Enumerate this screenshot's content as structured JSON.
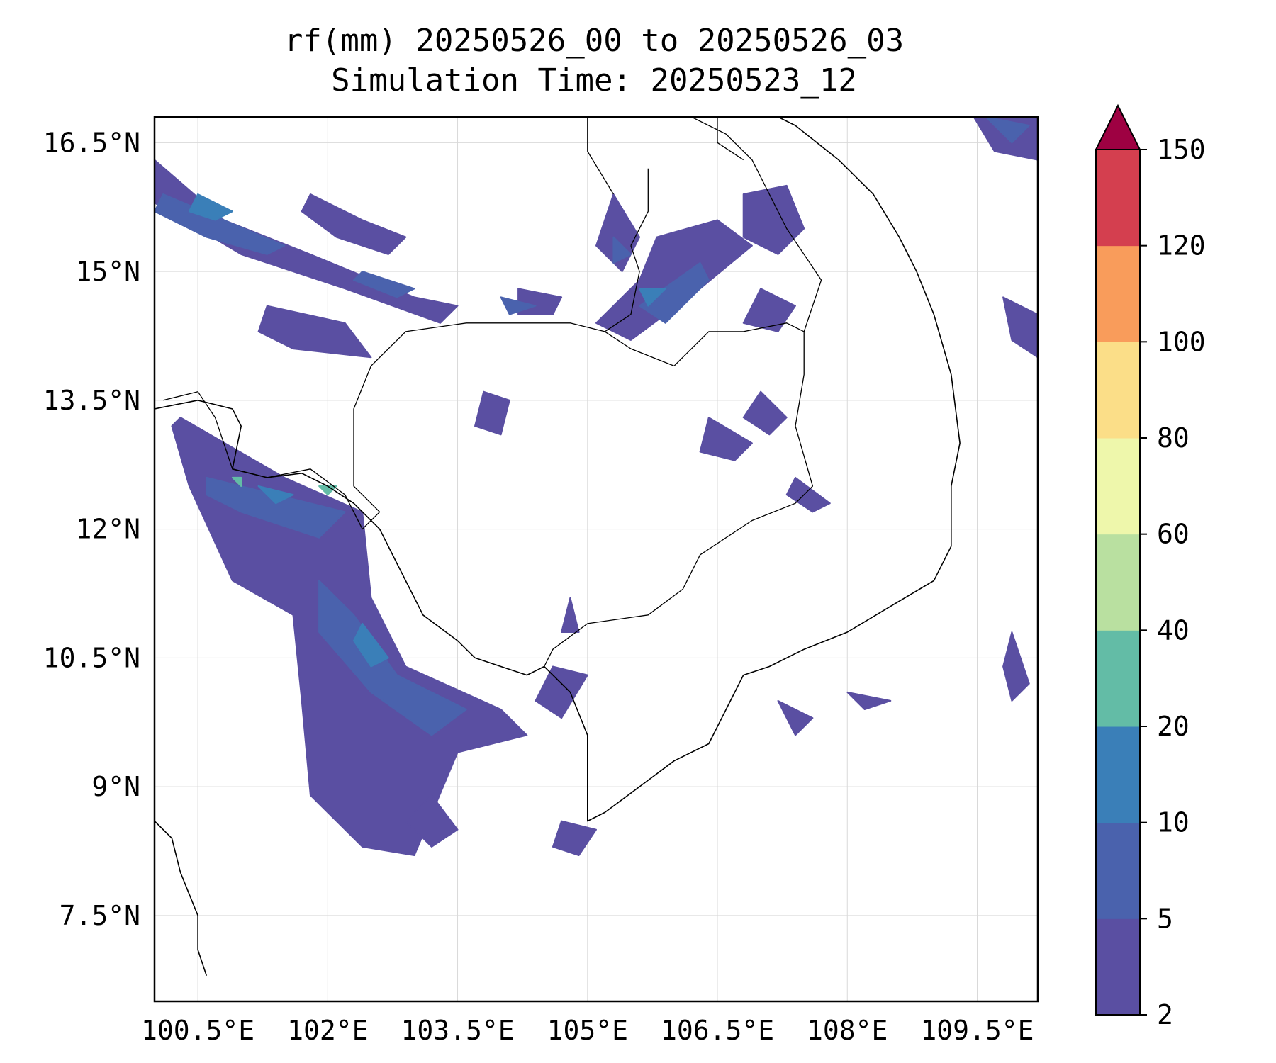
{
  "figure": {
    "title_line1": "rf(mm) 20250526_00 to 20250526_03",
    "title_line2": "Simulation Time: 20250523_12"
  },
  "map": {
    "lon_range": [
      100.0,
      110.2
    ],
    "lat_range": [
      6.5,
      16.8
    ],
    "lon_ticks": [
      {
        "value": 100.5,
        "label": "100.5°E"
      },
      {
        "value": 102.0,
        "label": "102°E"
      },
      {
        "value": 103.5,
        "label": "103.5°E"
      },
      {
        "value": 105.0,
        "label": "105°E"
      },
      {
        "value": 106.5,
        "label": "106.5°E"
      },
      {
        "value": 108.0,
        "label": "108°E"
      },
      {
        "value": 109.5,
        "label": "109.5°E"
      }
    ],
    "lat_ticks": [
      {
        "value": 16.5,
        "label": "16.5°N"
      },
      {
        "value": 15.0,
        "label": "15°N"
      },
      {
        "value": 13.5,
        "label": "13.5°N"
      },
      {
        "value": 12.0,
        "label": "12°N"
      },
      {
        "value": 10.5,
        "label": "10.5°N"
      },
      {
        "value": 9.0,
        "label": "9°N"
      },
      {
        "value": 7.5,
        "label": "7.5°N"
      }
    ],
    "gridlines": true
  },
  "colorbar": {
    "levels": [
      2,
      5,
      10,
      20,
      40,
      60,
      80,
      100,
      120,
      150
    ],
    "labels": [
      "2",
      "5",
      "10",
      "20",
      "40",
      "60",
      "80",
      "100",
      "120",
      "150"
    ],
    "colors": [
      "#5a4fa2",
      "#4a62ad",
      "#3a7fb8",
      "#63bca6",
      "#b9e0a0",
      "#eef7ab",
      "#fbde88",
      "#f99c5b",
      "#d43f4f"
    ],
    "extend_color": "#9e0142",
    "extend": "max"
  },
  "rain_areas": [
    {
      "level": "2-5",
      "pts": [
        [
          100.0,
          16.3
        ],
        [
          100.8,
          15.6
        ],
        [
          101.8,
          15.2
        ],
        [
          103.0,
          14.7
        ],
        [
          103.5,
          14.6
        ],
        [
          103.3,
          14.4
        ],
        [
          102.2,
          14.8
        ],
        [
          101.0,
          15.2
        ],
        [
          100.0,
          15.8
        ]
      ]
    },
    {
      "level": "2-5",
      "pts": [
        [
          100.3,
          13.3
        ],
        [
          101.5,
          12.6
        ],
        [
          102.4,
          12.2
        ],
        [
          102.5,
          11.2
        ],
        [
          102.9,
          10.4
        ],
        [
          104.0,
          9.9
        ],
        [
          104.3,
          9.6
        ],
        [
          103.5,
          9.4
        ],
        [
          103.0,
          8.2
        ],
        [
          102.4,
          8.3
        ],
        [
          101.8,
          8.9
        ],
        [
          101.7,
          10.0
        ],
        [
          101.6,
          11.0
        ],
        [
          100.9,
          11.4
        ],
        [
          100.4,
          12.5
        ],
        [
          100.2,
          13.2
        ]
      ]
    },
    {
      "level": "2-5",
      "pts": [
        [
          101.3,
          14.6
        ],
        [
          102.2,
          14.4
        ],
        [
          102.5,
          14.0
        ],
        [
          101.6,
          14.1
        ],
        [
          101.2,
          14.3
        ]
      ]
    },
    {
      "level": "2-5",
      "pts": [
        [
          101.8,
          15.9
        ],
        [
          102.4,
          15.6
        ],
        [
          102.9,
          15.4
        ],
        [
          102.7,
          15.2
        ],
        [
          102.1,
          15.4
        ],
        [
          101.7,
          15.7
        ]
      ]
    },
    {
      "level": "2-5",
      "pts": [
        [
          105.3,
          15.9
        ],
        [
          105.6,
          15.4
        ],
        [
          105.4,
          15.0
        ],
        [
          105.1,
          15.3
        ]
      ]
    },
    {
      "level": "2-5",
      "pts": [
        [
          105.8,
          15.4
        ],
        [
          106.5,
          15.6
        ],
        [
          106.9,
          15.3
        ],
        [
          106.3,
          14.8
        ],
        [
          105.5,
          14.2
        ],
        [
          105.1,
          14.4
        ],
        [
          105.6,
          14.9
        ]
      ]
    },
    {
      "level": "2-5",
      "pts": [
        [
          107.0,
          14.8
        ],
        [
          107.4,
          14.6
        ],
        [
          107.2,
          14.3
        ],
        [
          106.8,
          14.4
        ]
      ]
    },
    {
      "level": "2-5",
      "pts": [
        [
          106.8,
          15.9
        ],
        [
          107.3,
          16.0
        ],
        [
          107.5,
          15.5
        ],
        [
          107.2,
          15.2
        ],
        [
          106.8,
          15.4
        ]
      ]
    },
    {
      "level": "2-5",
      "pts": [
        [
          109.4,
          16.9
        ],
        [
          110.2,
          16.9
        ],
        [
          110.2,
          16.3
        ],
        [
          109.7,
          16.4
        ]
      ]
    },
    {
      "level": "2-5",
      "pts": [
        [
          104.2,
          14.8
        ],
        [
          104.7,
          14.7
        ],
        [
          104.6,
          14.5
        ],
        [
          104.2,
          14.5
        ]
      ]
    },
    {
      "level": "2-5",
      "pts": [
        [
          103.8,
          13.6
        ],
        [
          104.1,
          13.5
        ],
        [
          104.0,
          13.1
        ],
        [
          103.7,
          13.2
        ]
      ]
    },
    {
      "level": "2-5",
      "pts": [
        [
          107.0,
          13.6
        ],
        [
          107.3,
          13.3
        ],
        [
          107.1,
          13.1
        ],
        [
          106.8,
          13.3
        ]
      ]
    },
    {
      "level": "2-5",
      "pts": [
        [
          106.4,
          13.3
        ],
        [
          106.9,
          13.0
        ],
        [
          106.7,
          12.8
        ],
        [
          106.3,
          12.9
        ]
      ]
    },
    {
      "level": "2-5",
      "pts": [
        [
          107.4,
          12.6
        ],
        [
          107.8,
          12.3
        ],
        [
          107.6,
          12.2
        ],
        [
          107.3,
          12.4
        ]
      ]
    },
    {
      "level": "2-5",
      "pts": [
        [
          104.8,
          11.2
        ],
        [
          104.9,
          10.8
        ],
        [
          104.7,
          10.8
        ]
      ]
    },
    {
      "level": "2-5",
      "pts": [
        [
          104.6,
          10.4
        ],
        [
          105.0,
          10.3
        ],
        [
          104.7,
          9.8
        ],
        [
          104.4,
          10.0
        ]
      ]
    },
    {
      "level": "2-5",
      "pts": [
        [
          107.2,
          10.0
        ],
        [
          107.6,
          9.8
        ],
        [
          107.4,
          9.6
        ]
      ]
    },
    {
      "level": "2-5",
      "pts": [
        [
          108.0,
          10.1
        ],
        [
          108.5,
          10.0
        ],
        [
          108.2,
          9.9
        ]
      ]
    },
    {
      "level": "2-5",
      "pts": [
        [
          104.7,
          8.6
        ],
        [
          105.1,
          8.5
        ],
        [
          104.9,
          8.2
        ],
        [
          104.6,
          8.3
        ]
      ]
    },
    {
      "level": "2-5",
      "pts": [
        [
          103.2,
          8.9
        ],
        [
          103.5,
          8.5
        ],
        [
          103.2,
          8.3
        ],
        [
          102.9,
          8.6
        ]
      ]
    },
    {
      "level": "2-5",
      "pts": [
        [
          109.8,
          14.7
        ],
        [
          110.2,
          14.5
        ],
        [
          110.2,
          14.0
        ],
        [
          109.9,
          14.2
        ]
      ]
    },
    {
      "level": "2-5",
      "pts": [
        [
          109.9,
          10.8
        ],
        [
          110.1,
          10.2
        ],
        [
          109.9,
          10.0
        ],
        [
          109.8,
          10.4
        ]
      ]
    },
    {
      "level": "5-10",
      "pts": [
        [
          100.1,
          15.9
        ],
        [
          100.8,
          15.6
        ],
        [
          101.5,
          15.3
        ],
        [
          101.3,
          15.2
        ],
        [
          100.6,
          15.4
        ],
        [
          100.0,
          15.7
        ]
      ]
    },
    {
      "level": "5-10",
      "pts": [
        [
          102.4,
          15.0
        ],
        [
          103.0,
          14.8
        ],
        [
          102.8,
          14.7
        ],
        [
          102.3,
          14.9
        ]
      ]
    },
    {
      "level": "5-10",
      "pts": [
        [
          100.6,
          12.6
        ],
        [
          101.8,
          12.3
        ],
        [
          102.2,
          12.2
        ],
        [
          101.9,
          11.9
        ],
        [
          101.0,
          12.2
        ],
        [
          100.6,
          12.4
        ]
      ]
    },
    {
      "level": "5-10",
      "pts": [
        [
          101.9,
          11.4
        ],
        [
          102.3,
          11.0
        ],
        [
          102.8,
          10.3
        ],
        [
          103.6,
          9.9
        ],
        [
          103.2,
          9.6
        ],
        [
          102.5,
          10.1
        ],
        [
          101.9,
          10.8
        ]
      ]
    },
    {
      "level": "5-10",
      "pts": [
        [
          105.6,
          14.6
        ],
        [
          106.3,
          15.1
        ],
        [
          106.4,
          14.9
        ],
        [
          105.9,
          14.4
        ]
      ]
    },
    {
      "level": "5-10",
      "pts": [
        [
          105.3,
          15.4
        ],
        [
          105.5,
          15.2
        ],
        [
          105.3,
          15.1
        ]
      ]
    },
    {
      "level": "5-10",
      "pts": [
        [
          104.0,
          14.7
        ],
        [
          104.4,
          14.6
        ],
        [
          104.1,
          14.5
        ]
      ]
    },
    {
      "level": "5-10",
      "pts": [
        [
          109.6,
          16.8
        ],
        [
          110.1,
          16.7
        ],
        [
          109.9,
          16.5
        ]
      ]
    },
    {
      "level": "10-20",
      "pts": [
        [
          100.5,
          15.9
        ],
        [
          100.9,
          15.7
        ],
        [
          100.7,
          15.6
        ],
        [
          100.4,
          15.7
        ]
      ]
    },
    {
      "level": "10-20",
      "pts": [
        [
          101.2,
          12.5
        ],
        [
          101.6,
          12.4
        ],
        [
          101.4,
          12.3
        ]
      ]
    },
    {
      "level": "10-20",
      "pts": [
        [
          102.4,
          10.9
        ],
        [
          102.7,
          10.5
        ],
        [
          102.5,
          10.4
        ],
        [
          102.3,
          10.7
        ]
      ]
    },
    {
      "level": "10-20",
      "pts": [
        [
          105.6,
          14.8
        ],
        [
          105.9,
          14.8
        ],
        [
          105.7,
          14.6
        ]
      ]
    },
    {
      "level": "20-40",
      "pts": [
        [
          101.9,
          12.5
        ],
        [
          102.1,
          12.5
        ],
        [
          102.0,
          12.4
        ]
      ]
    },
    {
      "level": "20-40",
      "pts": [
        [
          100.9,
          12.6
        ],
        [
          101.0,
          12.6
        ],
        [
          101.0,
          12.5
        ]
      ]
    }
  ],
  "coastlines": [
    [
      [
        100.0,
        13.4
      ],
      [
        100.5,
        13.5
      ],
      [
        100.9,
        13.4
      ],
      [
        101.0,
        13.2
      ],
      [
        100.9,
        12.7
      ],
      [
        101.3,
        12.6
      ],
      [
        101.7,
        12.65
      ],
      [
        102.0,
        12.5
      ],
      [
        102.3,
        12.3
      ],
      [
        102.6,
        12.0
      ],
      [
        102.8,
        11.6
      ],
      [
        103.0,
        11.2
      ],
      [
        103.1,
        11.0
      ],
      [
        103.5,
        10.7
      ],
      [
        103.7,
        10.5
      ],
      [
        104.0,
        10.4
      ],
      [
        104.3,
        10.3
      ],
      [
        104.5,
        10.4
      ],
      [
        104.8,
        10.1
      ],
      [
        105.0,
        9.6
      ],
      [
        105.0,
        8.6
      ],
      [
        105.2,
        8.7
      ],
      [
        105.6,
        9.0
      ],
      [
        106.0,
        9.3
      ],
      [
        106.4,
        9.5
      ],
      [
        106.8,
        10.3
      ],
      [
        107.1,
        10.4
      ],
      [
        107.5,
        10.6
      ],
      [
        108.0,
        10.8
      ],
      [
        108.5,
        11.1
      ],
      [
        109.0,
        11.4
      ],
      [
        109.2,
        11.8
      ],
      [
        109.2,
        12.5
      ],
      [
        109.3,
        13.0
      ],
      [
        109.2,
        13.8
      ],
      [
        109.0,
        14.5
      ],
      [
        108.8,
        15.0
      ],
      [
        108.6,
        15.4
      ],
      [
        108.3,
        15.9
      ],
      [
        107.9,
        16.3
      ],
      [
        107.4,
        16.7
      ],
      [
        107.0,
        16.9
      ]
    ],
    [
      [
        100.0,
        8.6
      ],
      [
        100.2,
        8.4
      ],
      [
        100.3,
        8.0
      ],
      [
        100.5,
        7.5
      ],
      [
        100.5,
        7.1
      ],
      [
        100.6,
        6.8
      ]
    ]
  ],
  "borders": [
    [
      [
        100.1,
        13.5
      ],
      [
        100.5,
        13.6
      ],
      [
        100.7,
        13.3
      ],
      [
        100.9,
        12.7
      ],
      [
        101.3,
        12.6
      ],
      [
        101.8,
        12.7
      ],
      [
        102.2,
        12.4
      ],
      [
        102.4,
        12.0
      ],
      [
        102.6,
        12.2
      ],
      [
        102.3,
        12.5
      ],
      [
        102.3,
        12.8
      ],
      [
        102.3,
        13.4
      ],
      [
        102.5,
        13.9
      ],
      [
        102.9,
        14.3
      ],
      [
        103.6,
        14.4
      ],
      [
        104.3,
        14.4
      ],
      [
        104.8,
        14.4
      ],
      [
        105.2,
        14.3
      ],
      [
        105.5,
        14.1
      ],
      [
        106.0,
        13.9
      ],
      [
        106.4,
        14.3
      ],
      [
        106.8,
        14.3
      ],
      [
        107.3,
        14.4
      ],
      [
        107.5,
        14.3
      ],
      [
        107.5,
        13.8
      ],
      [
        107.4,
        13.2
      ],
      [
        107.6,
        12.5
      ],
      [
        107.4,
        12.3
      ],
      [
        106.9,
        12.1
      ],
      [
        106.3,
        11.7
      ],
      [
        106.1,
        11.3
      ],
      [
        105.7,
        11.0
      ],
      [
        105.0,
        10.9
      ],
      [
        104.6,
        10.6
      ],
      [
        104.5,
        10.4
      ]
    ],
    [
      [
        105.5,
        15.3
      ],
      [
        105.6,
        15.0
      ],
      [
        105.5,
        14.5
      ],
      [
        105.2,
        14.3
      ]
    ],
    [
      [
        105.7,
        16.2
      ],
      [
        105.7,
        15.7
      ],
      [
        105.5,
        15.3
      ]
    ],
    [
      [
        107.5,
        14.3
      ],
      [
        107.7,
        14.9
      ],
      [
        107.3,
        15.5
      ],
      [
        107.1,
        15.9
      ],
      [
        106.9,
        16.3
      ],
      [
        106.6,
        16.6
      ],
      [
        106.0,
        16.9
      ]
    ],
    [
      [
        105.0,
        16.9
      ],
      [
        105.0,
        16.4
      ],
      [
        105.3,
        15.9
      ]
    ],
    [
      [
        106.5,
        16.9
      ],
      [
        106.5,
        16.5
      ],
      [
        106.8,
        16.3
      ]
    ]
  ]
}
